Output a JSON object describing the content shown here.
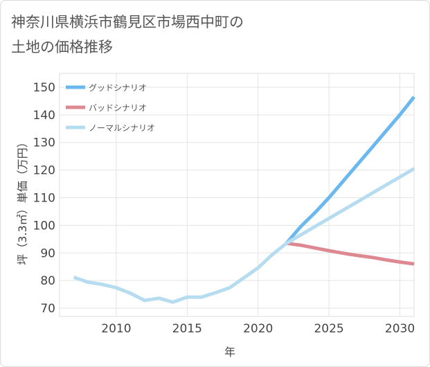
{
  "title_line1": "神奈川県横浜市鶴見区市場西中町の",
  "title_line2": "土地の価格推移",
  "chart_data": {
    "type": "line",
    "xlabel": "年",
    "ylabel": "坪（3.3㎡）単価（万円）",
    "xlim": [
      2006,
      2031
    ],
    "ylim": [
      67,
      155
    ],
    "xticks": [
      2010,
      2015,
      2020,
      2025,
      2030
    ],
    "yticks": [
      70,
      80,
      90,
      100,
      110,
      120,
      130,
      140,
      150
    ],
    "legend_position": "top-left",
    "series": [
      {
        "name": "グッドシナリオ",
        "color": "#6ab8ee",
        "x": [
          2022,
          2023,
          2024,
          2025,
          2026,
          2027,
          2028,
          2029,
          2030,
          2031
        ],
        "y": [
          93.5,
          99.5,
          104.5,
          110,
          116,
          122,
          128,
          134,
          140,
          146.5
        ]
      },
      {
        "name": "バッドシナリオ",
        "color": "#de8891",
        "x": [
          2022,
          2023,
          2024,
          2025,
          2026,
          2027,
          2028,
          2029,
          2030,
          2031
        ],
        "y": [
          93.5,
          92.8,
          91.8,
          90.8,
          89.9,
          89.1,
          88.4,
          87.5,
          86.7,
          86
        ]
      },
      {
        "name": "ノーマルシナリオ",
        "color": "#b6dcef",
        "x": [
          2007,
          2008,
          2009,
          2010,
          2011,
          2012,
          2013,
          2014,
          2015,
          2016,
          2017,
          2018,
          2019,
          2020,
          2021,
          2022,
          2023,
          2024,
          2025,
          2026,
          2027,
          2028,
          2029,
          2030,
          2031
        ],
        "y": [
          81.2,
          79.4,
          78.6,
          77.4,
          75.4,
          72.8,
          73.6,
          72.2,
          74,
          74,
          75.6,
          77.4,
          81,
          84.6,
          89.4,
          93.5,
          96.5,
          99.5,
          102.5,
          105.5,
          108.5,
          111.5,
          114.5,
          117.5,
          120.5
        ]
      }
    ]
  }
}
